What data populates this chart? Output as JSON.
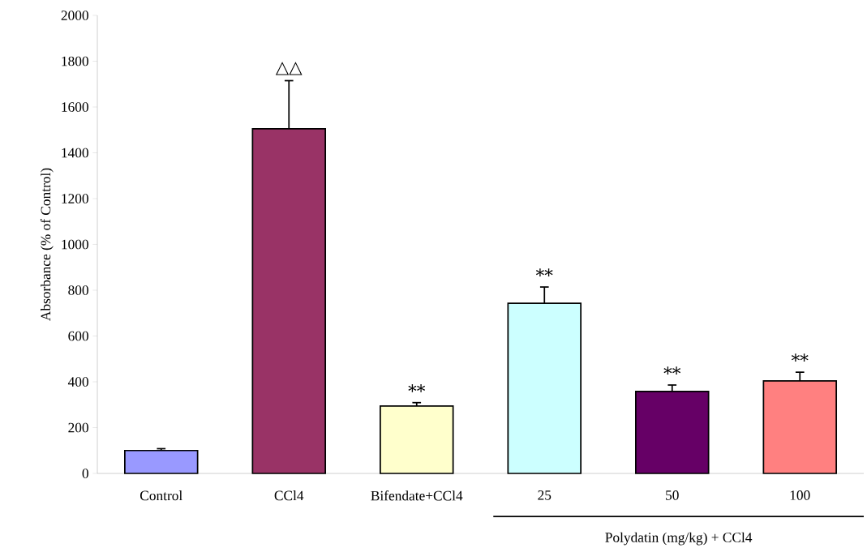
{
  "chart_data": {
    "type": "bar",
    "ylabel": "Absorbance (% of Control)",
    "categories": [
      "Control",
      "CCl4",
      "Bifendate+CCl4",
      "25",
      "50",
      "100"
    ],
    "values": [
      100,
      1505,
      294,
      743,
      358,
      404
    ],
    "errors": [
      8,
      210,
      15,
      71,
      28,
      38
    ],
    "colors": [
      "#9999ff",
      "#993366",
      "#ffffcc",
      "#ccffff",
      "#660066",
      "#ff8080"
    ],
    "ylim": [
      0,
      2000
    ],
    "yticks": [
      0,
      200,
      400,
      600,
      800,
      1000,
      1200,
      1400,
      1600,
      1800,
      2000
    ],
    "grid": false,
    "annotations": [
      "△△",
      "**",
      "**",
      "**",
      "**",
      "Polydatin (mg/kg) + CCl4"
    ]
  }
}
